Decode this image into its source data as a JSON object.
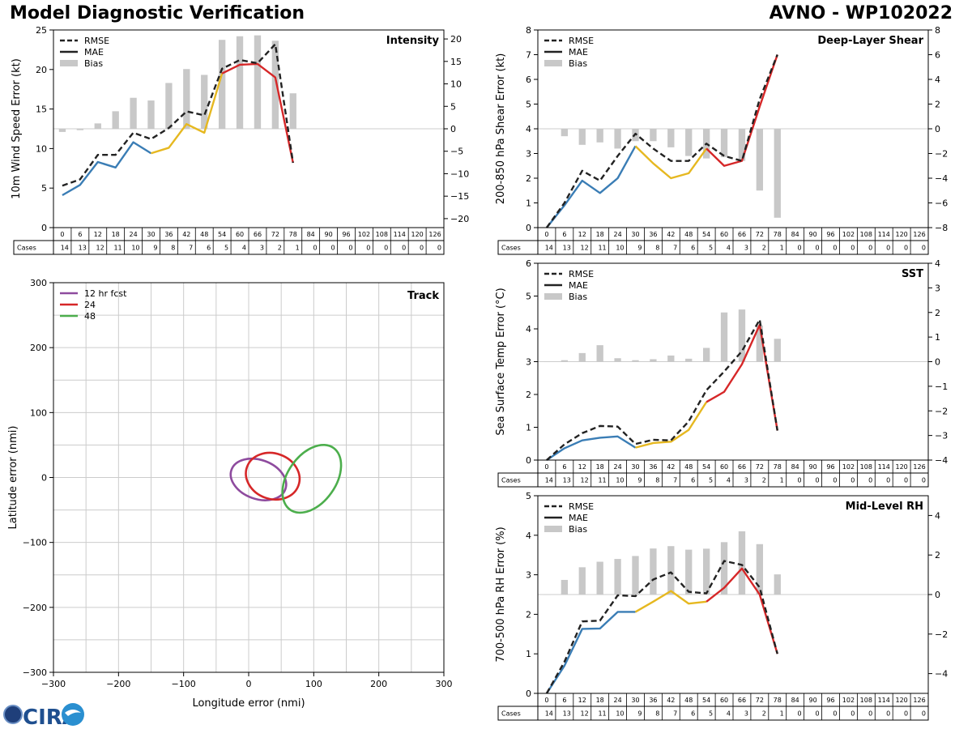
{
  "header": {
    "title": "Model Diagnostic Verification",
    "model_storm": "AVNO - WP102022"
  },
  "logo": {
    "text": "CIRA"
  },
  "colors": {
    "rmse": "#222222",
    "blue": "#3a7db5",
    "yellow": "#e6b820",
    "red": "#d62728",
    "bias": "#c8c8c8",
    "track12": "#8e4b9e",
    "track24": "#d62728",
    "track48": "#4cae4c",
    "grid": "#cccccc"
  },
  "chart_data": [
    {
      "id": "intensity",
      "type": "line",
      "title": "Intensity",
      "ylabel": "10m Wind Speed Error (kt)",
      "ylim": [
        0,
        25
      ],
      "yticks": [
        0,
        5,
        10,
        15,
        20,
        25
      ],
      "y2lim": [
        -22,
        22
      ],
      "y2ticks": [
        -20,
        -15,
        -10,
        -5,
        0,
        5,
        10,
        15,
        20
      ],
      "legend": [
        "RMSE",
        "MAE",
        "Bias"
      ],
      "legend_position": "top-left",
      "x": [
        0,
        6,
        12,
        18,
        24,
        30,
        36,
        42,
        48,
        54,
        60,
        66,
        72,
        78
      ],
      "rmse": [
        5.3,
        6.1,
        9.2,
        9.2,
        12.0,
        11.2,
        12.6,
        14.7,
        14.2,
        20.1,
        21.2,
        20.8,
        23.2,
        8.2
      ],
      "mae": [
        4.1,
        5.4,
        8.3,
        7.6,
        10.8,
        9.4,
        10.1,
        13.1,
        12.0,
        19.5,
        20.6,
        20.7,
        19.0,
        8.2
      ],
      "mae_color_breaks": [
        {
          "from": 0,
          "to": 30,
          "color": "blue"
        },
        {
          "from": 30,
          "to": 54,
          "color": "yellow"
        },
        {
          "from": 54,
          "to": 78,
          "color": "red"
        }
      ],
      "bias": [
        -0.7,
        -0.3,
        1.2,
        3.9,
        6.9,
        6.3,
        10.2,
        13.3,
        12.0,
        19.8,
        20.6,
        20.8,
        19.6,
        7.9
      ]
    },
    {
      "id": "shear",
      "type": "line",
      "title": "Deep-Layer Shear",
      "ylabel": "200-850 hPa Shear Error (kt)",
      "ylim": [
        0,
        8
      ],
      "yticks": [
        0,
        1,
        2,
        3,
        4,
        5,
        6,
        7,
        8
      ],
      "y2lim": [
        -8,
        8
      ],
      "y2ticks": [
        -8,
        -6,
        -4,
        -2,
        0,
        2,
        4,
        6,
        8
      ],
      "legend": [
        "RMSE",
        "MAE",
        "Bias"
      ],
      "legend_position": "top-left",
      "x": [
        0,
        6,
        12,
        18,
        24,
        30,
        36,
        42,
        48,
        54,
        60,
        66,
        72,
        78
      ],
      "rmse": [
        0.0,
        1.0,
        2.3,
        1.9,
        2.9,
        3.8,
        3.2,
        2.7,
        2.7,
        3.4,
        2.9,
        2.7,
        5.2,
        7.0
      ],
      "mae": [
        0.0,
        0.9,
        1.9,
        1.4,
        2.0,
        3.3,
        2.6,
        2.0,
        2.2,
        3.2,
        2.5,
        2.7,
        4.9,
        7.0
      ],
      "mae_color_breaks": [
        {
          "from": 0,
          "to": 30,
          "color": "blue"
        },
        {
          "from": 30,
          "to": 54,
          "color": "yellow"
        },
        {
          "from": 54,
          "to": 78,
          "color": "red"
        }
      ],
      "bias": [
        0.0,
        -0.6,
        -1.3,
        -1.1,
        -1.6,
        -1.0,
        -1.0,
        -1.5,
        -2.2,
        -2.4,
        -2.3,
        -2.6,
        -5.0,
        -7.2
      ]
    },
    {
      "id": "track",
      "type": "scatter",
      "title": "Track",
      "xlabel": "Longitude error (nmi)",
      "ylabel": "Latitude error (nmi)",
      "xlim": [
        -300,
        300
      ],
      "ylim": [
        -300,
        300
      ],
      "xticks": [
        -300,
        -200,
        -100,
        0,
        100,
        200,
        300
      ],
      "yticks": [
        -300,
        -200,
        -100,
        0,
        100,
        200,
        300
      ],
      "legend_position": "top-left",
      "ellipses": [
        {
          "name": "12 hr fcst",
          "cx": 15,
          "cy": -3,
          "rx": 44,
          "ry": 30,
          "angle": 20,
          "color": "track12"
        },
        {
          "name": "24",
          "cx": 37,
          "cy": 2,
          "rx": 42,
          "ry": 35,
          "angle": 20,
          "color": "track24"
        },
        {
          "name": "48",
          "cx": 97,
          "cy": -2,
          "rx": 58,
          "ry": 37,
          "angle": -55,
          "color": "track48"
        }
      ]
    },
    {
      "id": "sst",
      "type": "line",
      "title": "SST",
      "ylabel": "Sea Surface Temp Error (°C)",
      "ylim": [
        0,
        6
      ],
      "yticks": [
        0,
        1,
        2,
        3,
        4,
        5,
        6
      ],
      "y2lim": [
        -4,
        4
      ],
      "y2ticks": [
        -4,
        -3,
        -2,
        -1,
        0,
        1,
        2,
        3,
        4
      ],
      "legend": [
        "RMSE",
        "MAE",
        "Bias"
      ],
      "legend_position": "top-left",
      "x": [
        0,
        6,
        12,
        18,
        24,
        30,
        36,
        42,
        48,
        54,
        60,
        66,
        72,
        78
      ],
      "rmse": [
        0.0,
        0.48,
        0.82,
        1.04,
        1.02,
        0.49,
        0.62,
        0.6,
        1.18,
        2.13,
        2.7,
        3.32,
        4.28,
        0.9
      ],
      "mae": [
        0.0,
        0.36,
        0.6,
        0.68,
        0.72,
        0.38,
        0.52,
        0.56,
        0.92,
        1.77,
        2.08,
        2.92,
        4.12,
        0.9
      ],
      "mae_color_breaks": [
        {
          "from": 0,
          "to": 30,
          "color": "blue"
        },
        {
          "from": 30,
          "to": 54,
          "color": "yellow"
        },
        {
          "from": 54,
          "to": 78,
          "color": "red"
        }
      ],
      "bias": [
        0.0,
        0.06,
        0.35,
        0.67,
        0.14,
        0.06,
        0.1,
        0.25,
        0.12,
        0.56,
        2.0,
        2.12,
        1.47,
        0.93
      ]
    },
    {
      "id": "rh",
      "type": "line",
      "title": "Mid-Level RH",
      "ylabel": "700-500 hPa RH Error (%)",
      "ylim": [
        0,
        5
      ],
      "yticks": [
        0,
        1,
        2,
        3,
        4,
        5
      ],
      "y2lim": [
        -5,
        5
      ],
      "y2ticks": [
        -4,
        -2,
        0,
        2,
        4
      ],
      "legend": [
        "RMSE",
        "MAE",
        "Bias"
      ],
      "legend_position": "top-left",
      "x": [
        0,
        6,
        12,
        18,
        24,
        30,
        36,
        42,
        48,
        54,
        60,
        66,
        72,
        78
      ],
      "rmse": [
        0.0,
        0.8,
        1.82,
        1.84,
        2.48,
        2.46,
        2.88,
        3.06,
        2.57,
        2.53,
        3.35,
        3.25,
        2.68,
        1.0
      ],
      "mae": [
        0.0,
        0.7,
        1.63,
        1.64,
        2.06,
        2.06,
        2.32,
        2.59,
        2.27,
        2.32,
        2.67,
        3.16,
        2.5,
        1.0
      ],
      "mae_color_breaks": [
        {
          "from": 0,
          "to": 30,
          "color": "blue"
        },
        {
          "from": 30,
          "to": 54,
          "color": "yellow"
        },
        {
          "from": 54,
          "to": 78,
          "color": "red"
        }
      ],
      "bias": [
        0.0,
        0.74,
        1.38,
        1.66,
        1.8,
        1.95,
        2.33,
        2.45,
        2.27,
        2.32,
        2.65,
        3.2,
        2.55,
        1.02
      ]
    }
  ],
  "forecast_table": {
    "cases_label": "Cases",
    "hours": [
      "0",
      "6",
      "12",
      "18",
      "24",
      "30",
      "36",
      "42",
      "48",
      "54",
      "60",
      "66",
      "72",
      "78",
      "84",
      "90",
      "96",
      "102",
      "108",
      "114",
      "120",
      "126"
    ],
    "cases": [
      "14",
      "13",
      "12",
      "11",
      "10",
      "9",
      "8",
      "7",
      "6",
      "5",
      "4",
      "3",
      "2",
      "1",
      "0",
      "0",
      "0",
      "0",
      "0",
      "0",
      "0",
      "0"
    ]
  }
}
